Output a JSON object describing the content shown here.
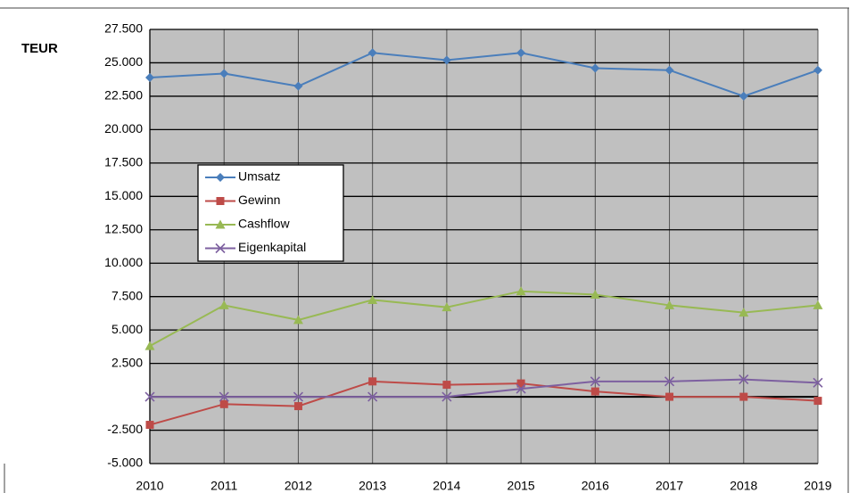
{
  "chart_data": {
    "type": "line",
    "y_label": "TEUR",
    "categories": [
      "2010",
      "2011",
      "2012",
      "2013",
      "2014",
      "2015",
      "2016",
      "2017",
      "2018",
      "2019"
    ],
    "series": [
      {
        "name": "Umsatz",
        "color": "#4a7ebb",
        "marker": "diamond",
        "values": [
          23900,
          24200,
          23250,
          25750,
          25200,
          25750,
          24600,
          24450,
          22500,
          24450
        ]
      },
      {
        "name": "Gewinn",
        "color": "#be4b48",
        "marker": "square",
        "values": [
          -2100,
          -550,
          -700,
          1150,
          900,
          1000,
          400,
          0,
          0,
          -300
        ]
      },
      {
        "name": "Cashflow",
        "color": "#98b954",
        "marker": "triangle",
        "values": [
          3800,
          6850,
          5750,
          7250,
          6700,
          7900,
          7650,
          6850,
          6300,
          6850
        ]
      },
      {
        "name": "Eigenkapital",
        "color": "#7d60a0",
        "marker": "x",
        "values": [
          0,
          0,
          0,
          0,
          0,
          600,
          1150,
          1150,
          1300,
          1050
        ]
      }
    ],
    "ylim": [
      -5000,
      27500
    ],
    "yticks": [
      {
        "value": -5000,
        "label": "-5.000"
      },
      {
        "value": -2500,
        "label": "-2.500"
      },
      {
        "value": 2500,
        "label": "2.500"
      },
      {
        "value": 5000,
        "label": "5.000"
      },
      {
        "value": 7500,
        "label": "7.500"
      },
      {
        "value": 10000,
        "label": "10.000"
      },
      {
        "value": 12500,
        "label": "12.500"
      },
      {
        "value": 15000,
        "label": "15.000"
      },
      {
        "value": 17500,
        "label": "17.500"
      },
      {
        "value": 20000,
        "label": "20.000"
      },
      {
        "value": 22500,
        "label": "22.500"
      },
      {
        "value": 25000,
        "label": "25.000"
      },
      {
        "value": 27500,
        "label": "27.500"
      }
    ],
    "grid": true
  }
}
